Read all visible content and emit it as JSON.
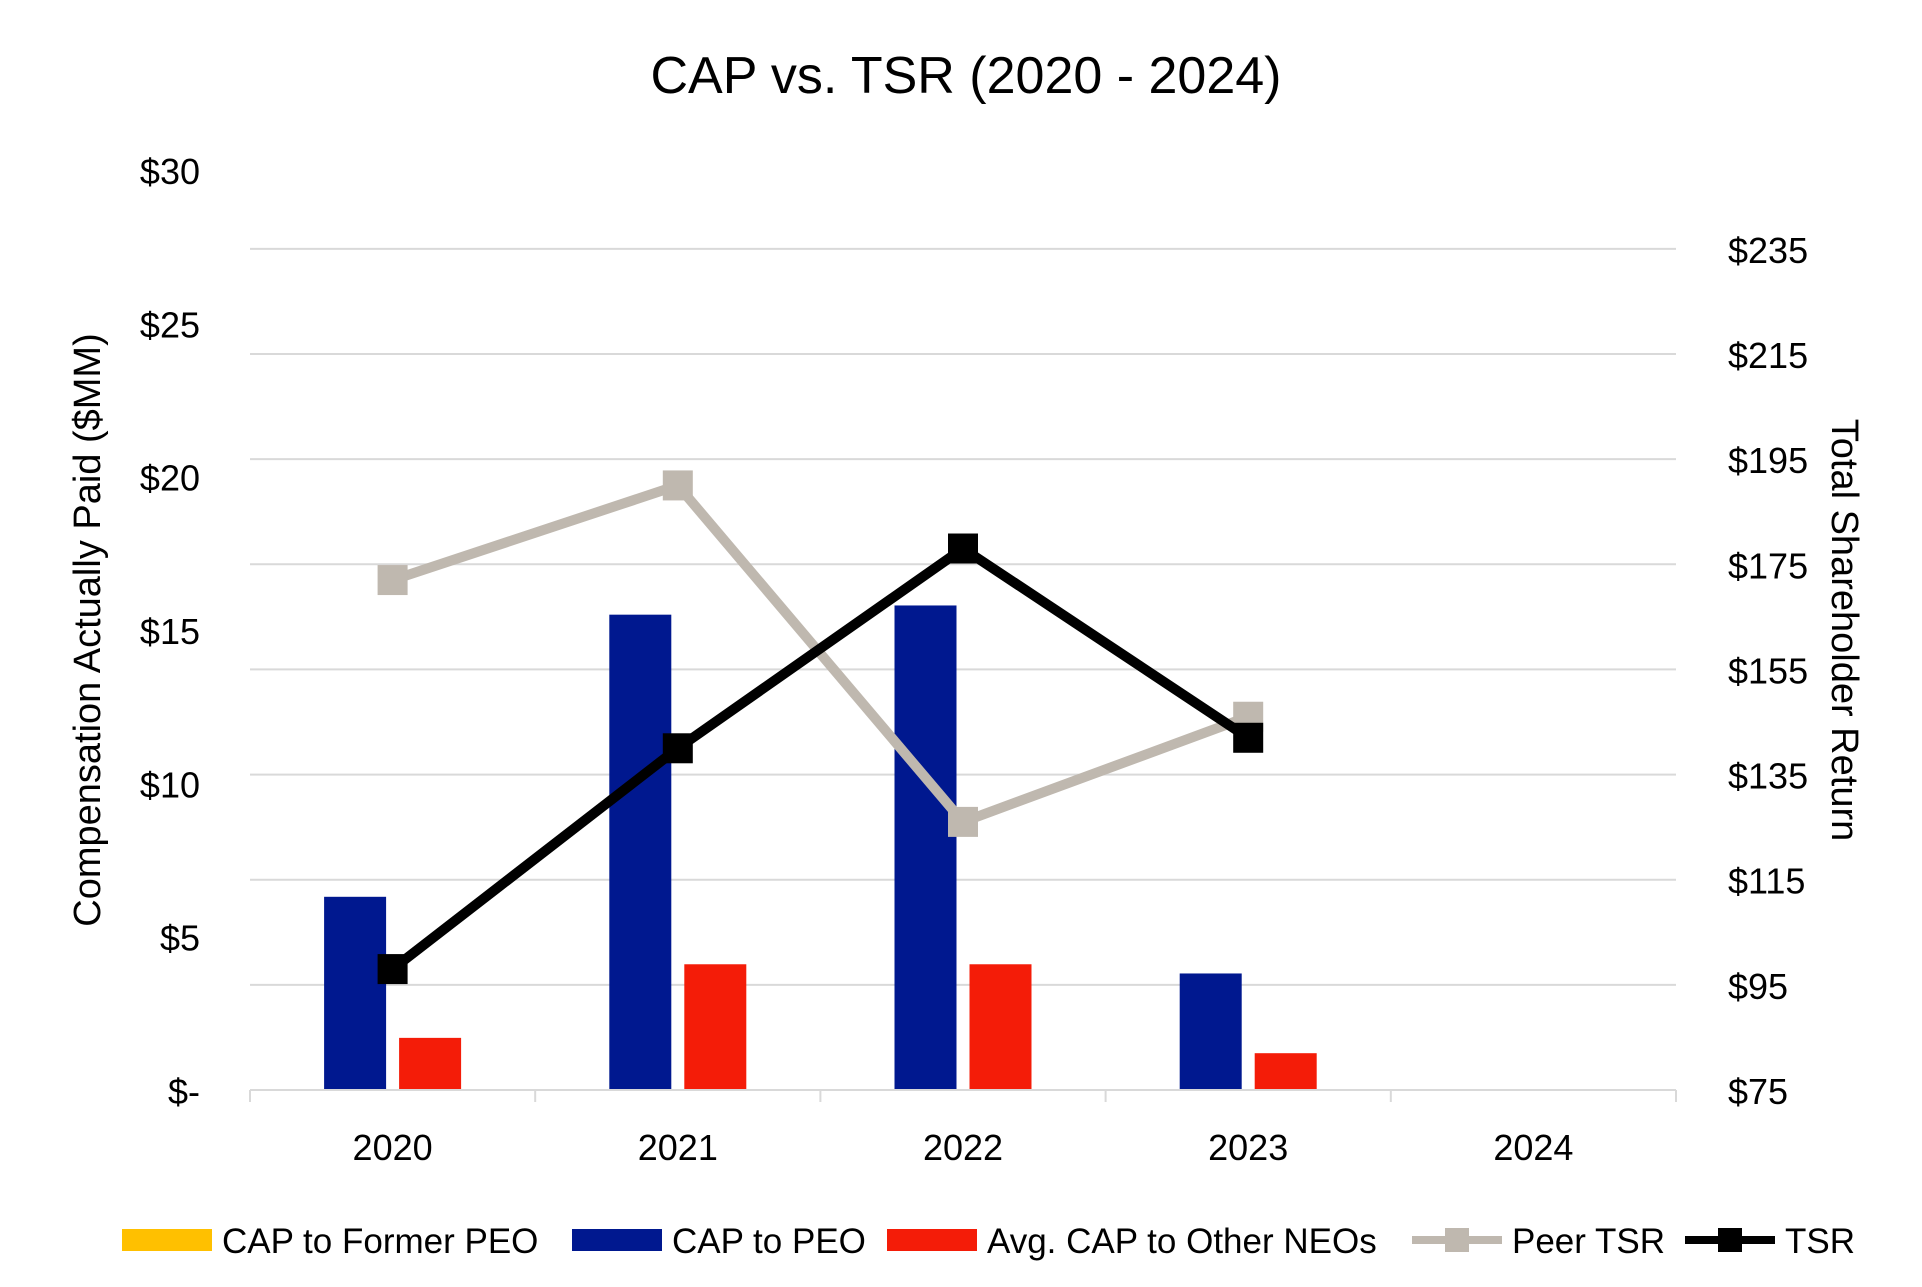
{
  "chart_data": {
    "type": "bar",
    "title": "CAP vs. TSR (2020 - 2024)",
    "categories": [
      "2020",
      "2021",
      "2022",
      "2023",
      "2024"
    ],
    "ylabel": "Compensation Actually Paid ($MM)",
    "y2label": "Total Shareholder Return",
    "ylim": [
      0,
      30
    ],
    "y2lim": [
      75,
      250
    ],
    "yticks": [
      {
        "value": 0,
        "label": "$-"
      },
      {
        "value": 5,
        "label": "$5"
      },
      {
        "value": 10,
        "label": "$10"
      },
      {
        "value": 15,
        "label": "$15"
      },
      {
        "value": 20,
        "label": "$20"
      },
      {
        "value": 25,
        "label": "$25"
      },
      {
        "value": 30,
        "label": "$30"
      }
    ],
    "y2ticks": [
      {
        "value": 75,
        "label": "$75"
      },
      {
        "value": 95,
        "label": "$95"
      },
      {
        "value": 115,
        "label": "$115"
      },
      {
        "value": 135,
        "label": "$135"
      },
      {
        "value": 155,
        "label": "$155"
      },
      {
        "value": 175,
        "label": "$175"
      },
      {
        "value": 195,
        "label": "$195"
      },
      {
        "value": 215,
        "label": "$215"
      },
      {
        "value": 235,
        "label": "$235"
      }
    ],
    "grid": true,
    "legend_position": "bottom",
    "bar_series": [
      {
        "name": "CAP to Former PEO",
        "color": "#FFC000",
        "values": [
          null,
          null,
          null,
          null,
          null
        ]
      },
      {
        "name": "CAP to PEO",
        "color": "#00188F",
        "values": [
          6.3,
          15.5,
          15.8,
          3.8,
          null
        ]
      },
      {
        "name": "Avg. CAP to Other NEOs",
        "color": "#F41C08",
        "values": [
          1.7,
          4.1,
          4.1,
          1.2,
          null
        ]
      }
    ],
    "line_series": [
      {
        "name": "Peer TSR",
        "color": "#BFB8AF",
        "axis": "right",
        "values": [
          172,
          190,
          126,
          146,
          null
        ]
      },
      {
        "name": "TSR",
        "color": "#000000",
        "axis": "right",
        "values": [
          98,
          140,
          178,
          142,
          null
        ]
      }
    ]
  }
}
